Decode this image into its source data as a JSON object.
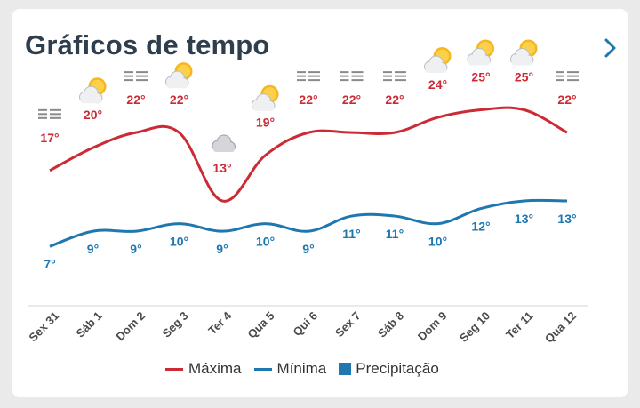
{
  "header": {
    "title": "Gráficos de tempo"
  },
  "colors": {
    "max": "#cc2b35",
    "min": "#1f77b0",
    "precip": "#1f77b0",
    "axis": "#e3e3e3"
  },
  "legend": {
    "max_label": "Máxima",
    "min_label": "Mínima",
    "precip_label": "Precipitação"
  },
  "chart_data": {
    "type": "line",
    "categories": [
      "Sex 31",
      "Sáb 1",
      "Dom 2",
      "Seg 3",
      "Ter 4",
      "Qua 5",
      "Qui 6",
      "Sex 7",
      "Sáb 8",
      "Dom 9",
      "Seg 10",
      "Ter 11",
      "Qua 12"
    ],
    "series": [
      {
        "name": "Máxima",
        "values": [
          17,
          20,
          22,
          22,
          13,
          19,
          22,
          22,
          22,
          24,
          25,
          25,
          22
        ]
      },
      {
        "name": "Mínima",
        "values": [
          7,
          9,
          9,
          10,
          9,
          10,
          9,
          11,
          11,
          10,
          12,
          13,
          13
        ]
      }
    ],
    "max_labels": [
      "17°",
      "20°",
      "22°",
      "22°",
      "13°",
      "19°",
      "22°",
      "22°",
      "22°",
      "24°",
      "25°",
      "25°",
      "22°"
    ],
    "min_labels": [
      "7°",
      "9°",
      "9°",
      "10°",
      "9°",
      "10°",
      "9°",
      "11°",
      "11°",
      "10°",
      "12°",
      "13°",
      "13°"
    ],
    "icons": [
      "fog-icon",
      "sun-cloud-icon",
      "fog-icon",
      "sun-cloud-icon",
      "cloud-icon",
      "sun-cloud-icon",
      "fog-icon",
      "fog-icon",
      "fog-icon",
      "sun-cloud-icon",
      "sun-cloud-icon",
      "sun-cloud-icon",
      "fog-icon"
    ],
    "ylim": [
      0,
      30
    ],
    "grid": false,
    "legend_position": "bottom-center"
  }
}
